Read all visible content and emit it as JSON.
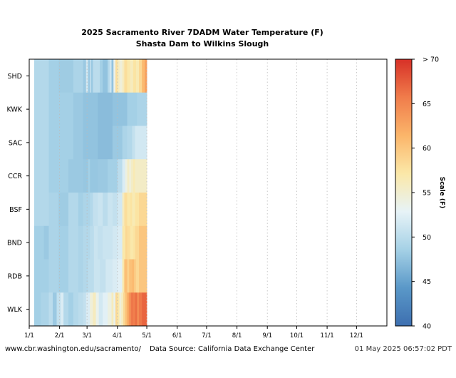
{
  "chart_data": {
    "type": "heatmap",
    "title_lines": [
      "2025 Sacramento River 7DADM Water Temperature (F)",
      "Shasta Dam to Wilkins Slough"
    ],
    "stations": [
      "SHD",
      "KWK",
      "SAC",
      "CCR",
      "BSF",
      "BND",
      "RDB",
      "WLK"
    ],
    "x_ticks": [
      "1/1",
      "2/1",
      "3/1",
      "4/1",
      "5/1",
      "6/1",
      "7/1",
      "8/1",
      "9/1",
      "10/1",
      "11/1",
      "12/1"
    ],
    "x_tick_days": [
      0,
      31,
      59,
      90,
      120,
      151,
      181,
      212,
      243,
      273,
      304,
      334
    ],
    "x_range_days": [
      0,
      365
    ],
    "data_start_day": 5,
    "data_end_day": 120,
    "colorbar": {
      "label": "Scale (F)",
      "min": 40,
      "max": 70,
      "ticks": [
        {
          "value": 40,
          "label": "40"
        },
        {
          "value": 45,
          "label": "45"
        },
        {
          "value": 50,
          "label": "50"
        },
        {
          "value": 55,
          "label": "55"
        },
        {
          "value": 60,
          "label": "60"
        },
        {
          "value": 65,
          "label": "65"
        },
        {
          "value": 70,
          "label": "> 70"
        }
      ],
      "colors": [
        "#3d6fb0",
        "#5a98c8",
        "#a5d1e6",
        "#e7f3f7",
        "#fbe8a8",
        "#fbb56a",
        "#f07c4b",
        "#d73027"
      ]
    },
    "series": [
      {
        "name": "SHD",
        "segments": [
          [
            5,
            49.5
          ],
          [
            20,
            48.5
          ],
          [
            30,
            48.2
          ],
          [
            45,
            49.0
          ],
          [
            55,
            48.0
          ],
          [
            58,
            51.5
          ],
          [
            60,
            48.0
          ],
          [
            62,
            51.0
          ],
          [
            63,
            48.0
          ],
          [
            65,
            50.0
          ],
          [
            72,
            48.5
          ],
          [
            75,
            47.5
          ],
          [
            80,
            49.5
          ],
          [
            82,
            51.0
          ],
          [
            84,
            47.5
          ],
          [
            86,
            53.5
          ],
          [
            88,
            58.0
          ],
          [
            90,
            56.0
          ],
          [
            92,
            54.5
          ],
          [
            95,
            56.0
          ],
          [
            97,
            58.0
          ],
          [
            100,
            57.0
          ],
          [
            103,
            56.0
          ],
          [
            106,
            57.5
          ],
          [
            109,
            56.5
          ],
          [
            112,
            58.5
          ],
          [
            115,
            61.0
          ],
          [
            118,
            63.0
          ]
        ]
      },
      {
        "name": "KWK",
        "segments": [
          [
            5,
            49.5
          ],
          [
            20,
            48.5
          ],
          [
            45,
            48.0
          ],
          [
            55,
            47.5
          ],
          [
            70,
            47.0
          ],
          [
            85,
            47.5
          ],
          [
            100,
            48.5
          ],
          [
            110,
            49.0
          ]
        ]
      },
      {
        "name": "SAC",
        "segments": [
          [
            5,
            49.5
          ],
          [
            20,
            48.5
          ],
          [
            45,
            48.0
          ],
          [
            55,
            47.5
          ],
          [
            70,
            47.0
          ],
          [
            85,
            48.0
          ],
          [
            95,
            49.0
          ],
          [
            100,
            49.5
          ],
          [
            105,
            50.5
          ],
          [
            108,
            51.5
          ]
        ]
      },
      {
        "name": "CCR",
        "segments": [
          [
            5,
            49.5
          ],
          [
            20,
            48.5
          ],
          [
            40,
            48.0
          ],
          [
            55,
            47.8
          ],
          [
            60,
            48.5
          ],
          [
            62,
            47.8
          ],
          [
            70,
            48.0
          ],
          [
            80,
            48.5
          ],
          [
            90,
            50.0
          ],
          [
            95,
            52.0
          ],
          [
            98,
            54.0
          ],
          [
            100,
            55.5
          ],
          [
            102,
            54.5
          ],
          [
            104,
            55.5
          ],
          [
            106,
            56.5
          ],
          [
            108,
            55.5
          ]
        ]
      },
      {
        "name": "BSF",
        "segments": [
          [
            5,
            49.5
          ],
          [
            20,
            49.0
          ],
          [
            30,
            48.2
          ],
          [
            40,
            49.5
          ],
          [
            50,
            48.5
          ],
          [
            55,
            49.0
          ],
          [
            62,
            49.5
          ],
          [
            65,
            50.5
          ],
          [
            70,
            51.0
          ],
          [
            75,
            50.0
          ],
          [
            80,
            51.0
          ],
          [
            85,
            50.5
          ],
          [
            90,
            51.5
          ],
          [
            95,
            56.0
          ],
          [
            97,
            58.0
          ],
          [
            100,
            57.0
          ],
          [
            103,
            57.5
          ],
          [
            105,
            56.5
          ],
          [
            108,
            57.5
          ],
          [
            112,
            58.5
          ]
        ]
      },
      {
        "name": "BND",
        "segments": [
          [
            5,
            48.5
          ],
          [
            15,
            48.0
          ],
          [
            20,
            49.0
          ],
          [
            30,
            48.5
          ],
          [
            40,
            49.5
          ],
          [
            50,
            49.0
          ],
          [
            55,
            49.5
          ],
          [
            62,
            50.0
          ],
          [
            66,
            51.0
          ],
          [
            70,
            50.5
          ],
          [
            75,
            51.0
          ],
          [
            85,
            51.5
          ],
          [
            90,
            52.0
          ],
          [
            95,
            57.0
          ],
          [
            98,
            58.5
          ],
          [
            100,
            58.0
          ],
          [
            103,
            57.0
          ],
          [
            106,
            57.5
          ],
          [
            108,
            58.5
          ],
          [
            112,
            60.0
          ]
        ]
      },
      {
        "name": "RDB",
        "segments": [
          [
            5,
            48.5
          ],
          [
            20,
            49.0
          ],
          [
            30,
            48.5
          ],
          [
            40,
            49.5
          ],
          [
            50,
            49.0
          ],
          [
            55,
            49.5
          ],
          [
            60,
            50.0
          ],
          [
            66,
            51.0
          ],
          [
            72,
            50.5
          ],
          [
            78,
            51.5
          ],
          [
            85,
            52.0
          ],
          [
            90,
            52.5
          ],
          [
            95,
            57.0
          ],
          [
            97,
            60.5
          ],
          [
            100,
            59.0
          ],
          [
            102,
            60.5
          ],
          [
            105,
            61.0
          ],
          [
            107,
            59.5
          ],
          [
            109,
            58.5
          ],
          [
            112,
            60.0
          ]
        ]
      },
      {
        "name": "WLK",
        "segments": [
          [
            5,
            48.5
          ],
          [
            12,
            49.0
          ],
          [
            20,
            50.0
          ],
          [
            24,
            48.0
          ],
          [
            28,
            50.5
          ],
          [
            32,
            52.0
          ],
          [
            35,
            49.5
          ],
          [
            40,
            48.5
          ],
          [
            45,
            49.5
          ],
          [
            50,
            50.0
          ],
          [
            55,
            50.5
          ],
          [
            58,
            52.0
          ],
          [
            62,
            54.5
          ],
          [
            65,
            56.0
          ],
          [
            68,
            53.5
          ],
          [
            71,
            51.5
          ],
          [
            75,
            52.5
          ],
          [
            80,
            54.0
          ],
          [
            84,
            56.0
          ],
          [
            86,
            53.5
          ],
          [
            88,
            58.5
          ],
          [
            90,
            57.0
          ],
          [
            92,
            54.5
          ],
          [
            94,
            56.0
          ],
          [
            96,
            58.5
          ],
          [
            98,
            60.5
          ],
          [
            100,
            62.5
          ],
          [
            102,
            64.5
          ],
          [
            104,
            66.0
          ],
          [
            106,
            65.5
          ],
          [
            108,
            66.5
          ],
          [
            110,
            64.5
          ],
          [
            112,
            66.0
          ],
          [
            115,
            67.0
          ]
        ]
      }
    ]
  },
  "footer": {
    "left": "www.cbr.washington.edu/sacramento/",
    "center": "Data Source: California Data Exchange Center",
    "right": "01 May 2025 06:57:02 PDT"
  }
}
